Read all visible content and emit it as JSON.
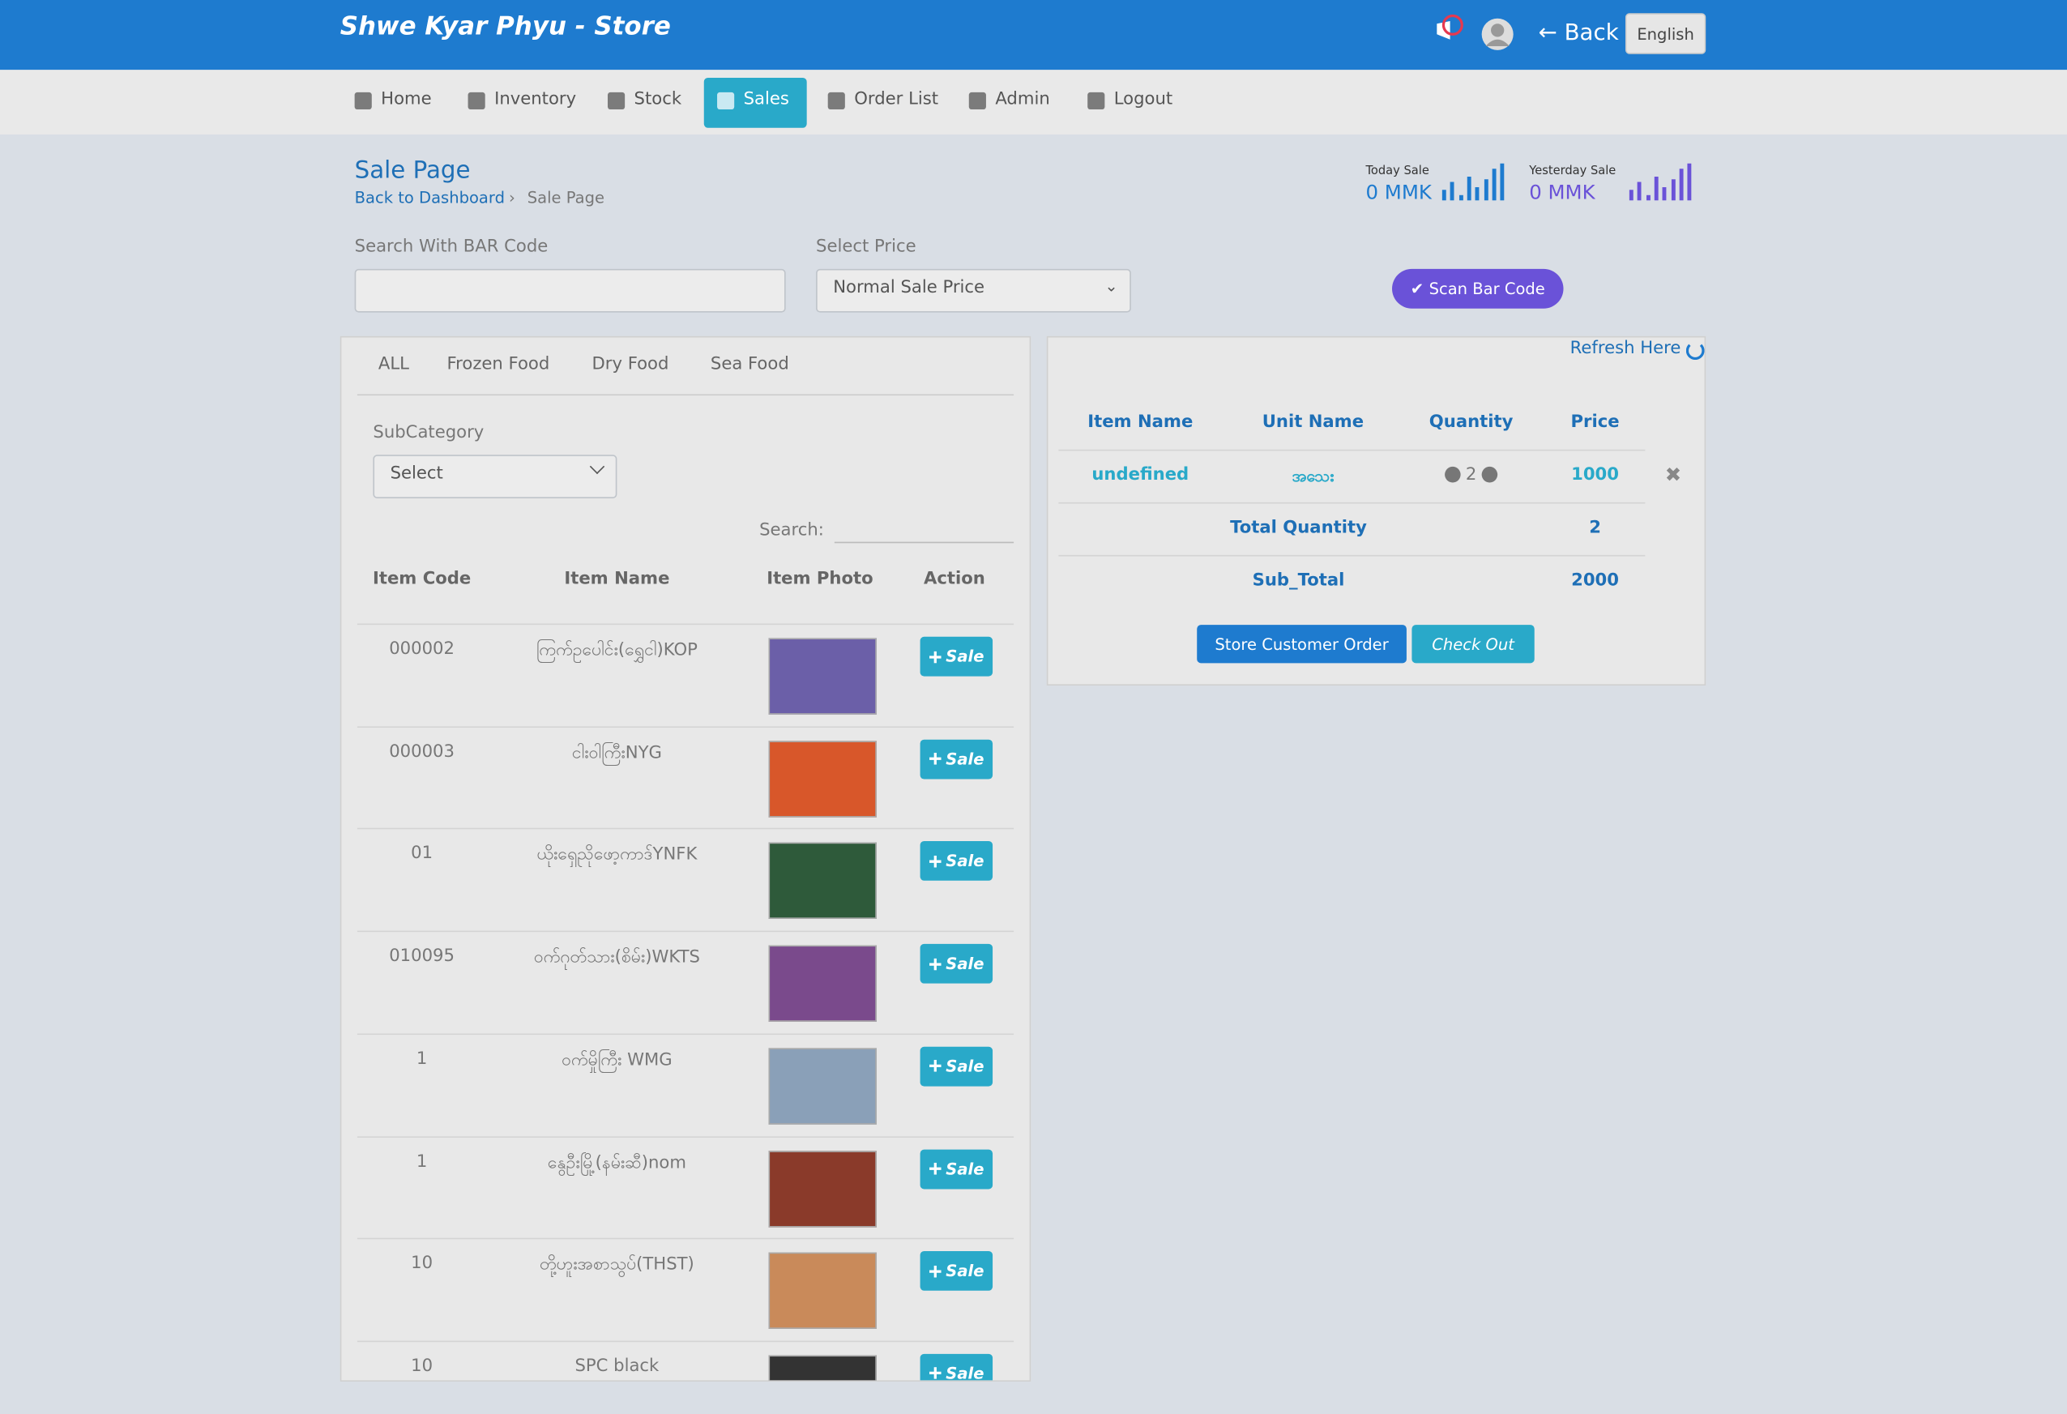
{
  "header": {
    "brand": "Shwe Kyar Phyu - Store",
    "back": "Back",
    "language": "English"
  },
  "nav": [
    "Home",
    "Inventory",
    "Stock",
    "Sales",
    "Order List",
    "Admin",
    "Logout"
  ],
  "page": {
    "title": "Sale Page",
    "breadcrumb": [
      "Back to Dashboard",
      "Sale Page"
    ]
  },
  "stats": [
    {
      "label": "Today Sale",
      "value": "0 MMK"
    },
    {
      "label": "Yesterday Sale",
      "value": "0 MMK"
    }
  ],
  "search": {
    "barcode_label": "Search With BAR Code",
    "price_label": "Select Price",
    "price_option": "Normal Sale Price",
    "scan_button": "Scan Bar Code"
  },
  "catalog": {
    "tabs": [
      "ALL",
      "Frozen Food",
      "Dry Food",
      "Sea Food"
    ],
    "subcategory_label": "SubCategory",
    "subcategory_option": "Select",
    "search_label": "Search:",
    "columns": [
      "Item Code",
      "Item Name",
      "Item Photo",
      "Action"
    ],
    "rows": [
      {
        "code": "000002",
        "name": "ကြက်ဥပေါင်း(ရွှေငါ)KOP",
        "action": "Sale"
      },
      {
        "code": "000003",
        "name": "ငါးဝါကြီးNYG",
        "action": "Sale"
      },
      {
        "code": "01",
        "name": "ယိုးရှေညိုဖော့ကာဒ်YNFK",
        "action": "Sale"
      },
      {
        "code": "010095",
        "name": "ဝက်ဂုတ်သား(စိမ်း)WKTS",
        "action": "Sale"
      },
      {
        "code": "1",
        "name": "ဝက်မှိုကြီး WMG",
        "action": "Sale"
      },
      {
        "code": "1",
        "name": "နွေဦးမြို့(နမ်းဆီ)nom",
        "action": "Sale"
      },
      {
        "code": "10",
        "name": "တို့ဟူးအစာသွပ်(THST)",
        "action": "Sale"
      },
      {
        "code": "10",
        "name": "SPC black",
        "action": "Sale"
      }
    ]
  },
  "cart": {
    "refresh": "Refresh Here",
    "columns": [
      "Item Name",
      "Unit Name",
      "Quantity",
      "Price"
    ],
    "rows": [
      {
        "item": "undefined",
        "unit": "အသေး",
        "quantity": 2,
        "price": 1000
      }
    ],
    "total_quantity_label": "Total Quantity",
    "total_quantity": 2,
    "subtotal_label": "Sub_Total",
    "subtotal": 2000,
    "store_button": "Store Customer Order",
    "checkout_button": "Check Out"
  }
}
